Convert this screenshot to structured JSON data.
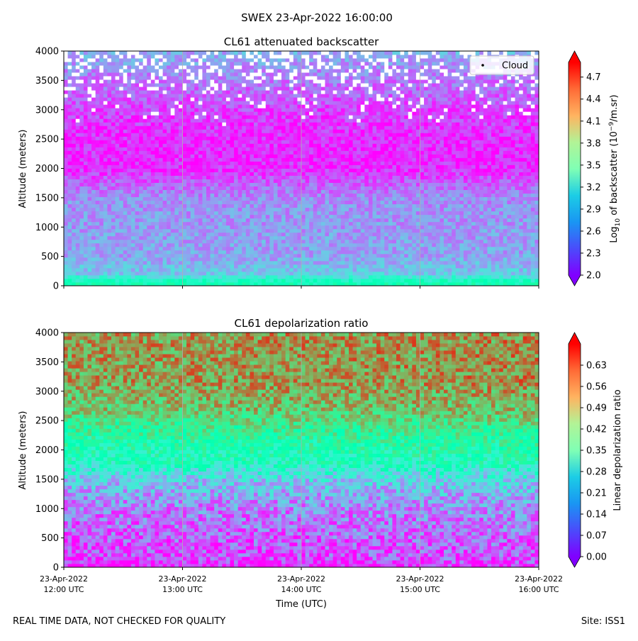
{
  "suptitle": "SWEX 23-Apr-2022 16:00:00",
  "footer_left": "REAL TIME DATA, NOT CHECKED FOR QUALITY",
  "footer_right": "Site: ISS1",
  "xlabel": "Time (UTC)",
  "chart_data": [
    {
      "type": "heatmap",
      "title": "CL61 attenuated backscatter",
      "ylabel": "Altitude (meters)",
      "ylim": [
        0,
        4000
      ],
      "yticks": [
        0,
        500,
        1000,
        1500,
        2000,
        2500,
        3000,
        3500,
        4000
      ],
      "x_ticks": [
        {
          "date": "23-Apr-2022",
          "time": "12:00 UTC"
        },
        {
          "date": "23-Apr-2022",
          "time": "13:00 UTC"
        },
        {
          "date": "23-Apr-2022",
          "time": "14:00 UTC"
        },
        {
          "date": "23-Apr-2022",
          "time": "15:00 UTC"
        },
        {
          "date": "23-Apr-2022",
          "time": "16:00 UTC"
        }
      ],
      "show_xtick_labels": false,
      "legend": {
        "label": "Cloud",
        "position": "top-right"
      },
      "colorbar": {
        "label_prefix": "Log",
        "label_sub": "10",
        "label_mid": " of backscatter (10",
        "label_sup": "−9",
        "label_suffix": "/m.sr)",
        "ticks": [
          "2.0",
          "2.3",
          "2.6",
          "2.9",
          "3.2",
          "3.5",
          "3.8",
          "4.1",
          "4.4",
          "4.7"
        ],
        "range": [
          2.0,
          4.9
        ]
      },
      "profile": [
        {
          "alt": 0,
          "value": 3.5
        },
        {
          "alt": 100,
          "value": 3.3
        },
        {
          "alt": 200,
          "value": 2.85
        },
        {
          "alt": 500,
          "value": 2.65
        },
        {
          "alt": 1000,
          "value": 2.6
        },
        {
          "alt": 1500,
          "value": 2.55
        },
        {
          "alt": 1750,
          "value": 2.35
        },
        {
          "alt": 2000,
          "value": 2.15
        },
        {
          "alt": 2500,
          "value": 2.15
        },
        {
          "alt": 3000,
          "value": 2.25
        },
        {
          "alt": 3500,
          "value": 2.45
        },
        {
          "alt": 4000,
          "value": 2.7
        }
      ]
    },
    {
      "type": "heatmap",
      "title": "CL61 depolarization ratio",
      "ylabel": "Altitude (meters)",
      "ylim": [
        0,
        4000
      ],
      "yticks": [
        0,
        500,
        1000,
        1500,
        2000,
        2500,
        3000,
        3500,
        4000
      ],
      "x_ticks": [
        {
          "date": "23-Apr-2022",
          "time": "12:00 UTC"
        },
        {
          "date": "23-Apr-2022",
          "time": "13:00 UTC"
        },
        {
          "date": "23-Apr-2022",
          "time": "14:00 UTC"
        },
        {
          "date": "23-Apr-2022",
          "time": "15:00 UTC"
        },
        {
          "date": "23-Apr-2022",
          "time": "16:00 UTC"
        }
      ],
      "show_xtick_labels": true,
      "colorbar": {
        "label": "Linear depolarization ratio",
        "ticks": [
          "0.00",
          "0.07",
          "0.14",
          "0.21",
          "0.28",
          "0.35",
          "0.42",
          "0.49",
          "0.56",
          "0.63"
        ],
        "range": [
          0.0,
          0.7
        ]
      },
      "profile": [
        {
          "alt": 0,
          "value": 0.0
        },
        {
          "alt": 100,
          "value": 0.05
        },
        {
          "alt": 500,
          "value": 0.08
        },
        {
          "alt": 1000,
          "value": 0.11
        },
        {
          "alt": 1500,
          "value": 0.2
        },
        {
          "alt": 1800,
          "value": 0.32
        },
        {
          "alt": 2200,
          "value": 0.38
        },
        {
          "alt": 2700,
          "value": 0.5
        },
        {
          "alt": 3200,
          "value": 0.55
        },
        {
          "alt": 4000,
          "value": 0.55
        }
      ]
    }
  ]
}
